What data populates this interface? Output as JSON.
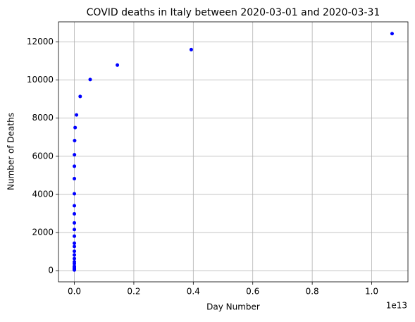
{
  "chart_data": {
    "type": "scatter",
    "title": "COVID deaths in Italy between 2020-03-01 and 2020-03-31",
    "x_label": "Day Number",
    "y_label": "Number of Deaths",
    "x_offset_label": "1e13",
    "color": "#0000ff",
    "grid": true,
    "x": [
      1,
      2.718,
      7.389,
      20.09,
      54.6,
      148.4,
      403.4,
      1097,
      2981,
      8103,
      22026,
      59874,
      162755,
      442413,
      1202604,
      3269017,
      8886111,
      24154953,
      65659969,
      178482301,
      485165195,
      1318815734,
      3584912846,
      9744803446,
      26489122130,
      72004899337,
      195729609429,
      532048240602,
      1446257064291,
      3931334297144,
      10686474581524
    ],
    "values": [
      34,
      52,
      79,
      107,
      148,
      197,
      233,
      366,
      463,
      631,
      827,
      1016,
      1266,
      1441,
      1809,
      2158,
      2503,
      2978,
      3405,
      4032,
      4825,
      5476,
      6077,
      6820,
      7503,
      8165,
      9134,
      10023,
      10779,
      11591,
      12428
    ],
    "xlim": [
      -534000000000,
      11220000000000
    ],
    "ylim": [
      -586,
      13048
    ],
    "xticks": [
      {
        "value": 0,
        "label": "0.0"
      },
      {
        "value": 2000000000000,
        "label": "0.2"
      },
      {
        "value": 4000000000000,
        "label": "0.4"
      },
      {
        "value": 6000000000000,
        "label": "0.6"
      },
      {
        "value": 8000000000000,
        "label": "0.8"
      },
      {
        "value": 10000000000000,
        "label": "1.0"
      }
    ],
    "yticks": [
      0,
      2000,
      4000,
      6000,
      8000,
      10000,
      12000
    ]
  }
}
